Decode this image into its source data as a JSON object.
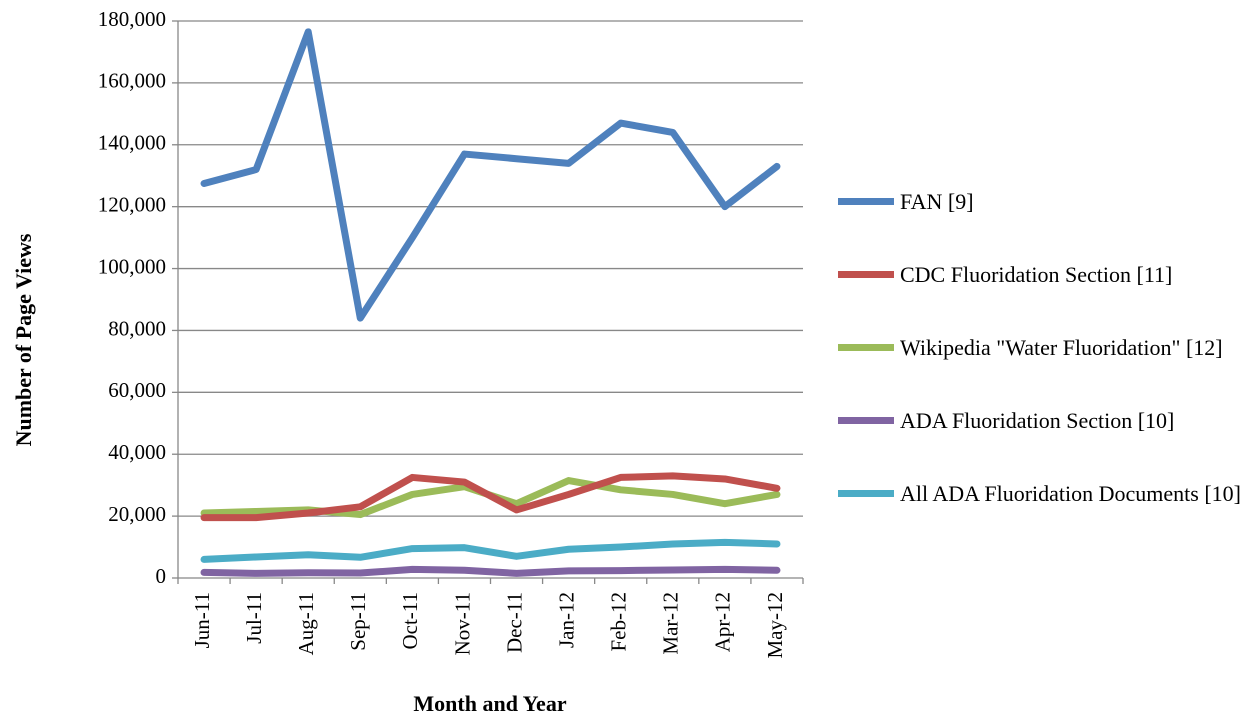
{
  "chart_data": {
    "type": "line",
    "y_label": "Number of Page Views",
    "x_label": "Month and Year",
    "categories": [
      "Jun-11",
      "Jul-11",
      "Aug-11",
      "Sep-11",
      "Oct-11",
      "Nov-11",
      "Dec-11",
      "Jan-12",
      "Feb-12",
      "Mar-12",
      "Apr-12",
      "May-12"
    ],
    "series": [
      {
        "name": "FAN [9]",
        "color": "#4f81bd",
        "values": [
          127500,
          132000,
          176500,
          84000,
          110000,
          137000,
          135500,
          134000,
          147000,
          144000,
          120000,
          133000
        ]
      },
      {
        "name": "CDC Fluoridation Section [11]",
        "color": "#c0504d",
        "values": [
          19500,
          19500,
          21000,
          23000,
          32500,
          31000,
          22000,
          27000,
          32500,
          33000,
          32000,
          29000
        ]
      },
      {
        "name": "Wikipedia \"Water Fluoridation\" [12]",
        "color": "#9bbb59",
        "values": [
          21000,
          21500,
          22000,
          20500,
          27000,
          29500,
          24000,
          31500,
          28500,
          27000,
          24000,
          27000
        ]
      },
      {
        "name": "ADA Fluoridation Section [10]",
        "color": "#8064a2",
        "values": [
          1800,
          1500,
          1700,
          1600,
          2800,
          2500,
          1500,
          2300,
          2400,
          2600,
          2800,
          2500
        ]
      },
      {
        "name": "All ADA Fluoridation Documents [10]",
        "color": "#4bacc6",
        "values": [
          6000,
          6800,
          7500,
          6700,
          9500,
          9800,
          7000,
          9300,
          10000,
          11000,
          11500,
          11000
        ]
      }
    ],
    "ylim": [
      0,
      180000
    ],
    "yticks": [
      {
        "value": 0,
        "label": "0"
      },
      {
        "value": 20000,
        "label": "20,000"
      },
      {
        "value": 40000,
        "label": "40,000"
      },
      {
        "value": 60000,
        "label": "60,000"
      },
      {
        "value": 80000,
        "label": "80,000"
      },
      {
        "value": 100000,
        "label": "100,000"
      },
      {
        "value": 120000,
        "label": "120,000"
      },
      {
        "value": 140000,
        "label": "140,000"
      },
      {
        "value": 160000,
        "label": "160,000"
      },
      {
        "value": 180000,
        "label": "180,000"
      }
    ],
    "grid": true,
    "legend": "right"
  }
}
